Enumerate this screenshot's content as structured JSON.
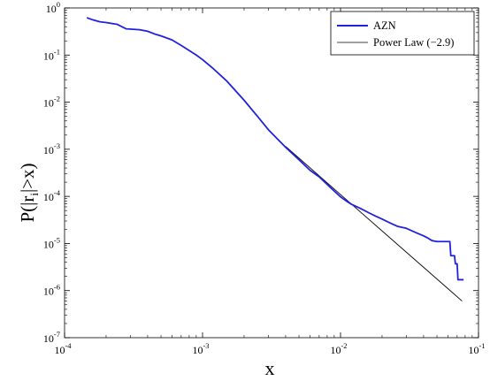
{
  "chart_data": {
    "type": "line",
    "xscale": "log",
    "yscale": "log",
    "xlim": [
      0.0001,
      0.1
    ],
    "ylim": [
      1e-07,
      1
    ],
    "grid": false,
    "legend_position": "top-right",
    "xlabel": "x",
    "ylabel_main": "P(|r",
    "ylabel_sub": "i",
    "ylabel_end": "|>x)",
    "x_ticks": [
      {
        "base": "10",
        "exp": "-4",
        "value": 0.0001
      },
      {
        "base": "10",
        "exp": "-3",
        "value": 0.001
      },
      {
        "base": "10",
        "exp": "-2",
        "value": 0.01
      },
      {
        "base": "10",
        "exp": "-1",
        "value": 0.1
      }
    ],
    "y_ticks": [
      {
        "base": "10",
        "exp": "-7",
        "value": 1e-07
      },
      {
        "base": "10",
        "exp": "-6",
        "value": 1e-06
      },
      {
        "base": "10",
        "exp": "-5",
        "value": 1e-05
      },
      {
        "base": "10",
        "exp": "-4",
        "value": 0.0001
      },
      {
        "base": "10",
        "exp": "-3",
        "value": 0.001
      },
      {
        "base": "10",
        "exp": "-2",
        "value": 0.01
      },
      {
        "base": "10",
        "exp": "-1",
        "value": 0.1
      },
      {
        "base": "10",
        "exp": "0",
        "value": 1
      }
    ],
    "series": [
      {
        "name": "AZN",
        "color": "#2222dd",
        "points": [
          [
            0.000145,
            0.62
          ],
          [
            0.00016,
            0.56
          ],
          [
            0.00018,
            0.51
          ],
          [
            0.0002,
            0.49
          ],
          [
            0.00024,
            0.45
          ],
          [
            0.00028,
            0.36
          ],
          [
            0.00035,
            0.345
          ],
          [
            0.0004,
            0.32
          ],
          [
            0.00045,
            0.28
          ],
          [
            0.0005,
            0.255
          ],
          [
            0.0006,
            0.21
          ],
          [
            0.0007,
            0.16
          ],
          [
            0.0008,
            0.125
          ],
          [
            0.0009,
            0.1
          ],
          [
            0.001,
            0.08
          ],
          [
            0.0012,
            0.051
          ],
          [
            0.0015,
            0.028
          ],
          [
            0.002,
            0.011
          ],
          [
            0.0025,
            0.005
          ],
          [
            0.003,
            0.0026
          ],
          [
            0.004,
            0.0011
          ],
          [
            0.005,
            0.0006
          ],
          [
            0.006,
            0.00036
          ],
          [
            0.007,
            0.00026
          ],
          [
            0.008,
            0.00018
          ],
          [
            0.009,
            0.00013
          ],
          [
            0.01,
            9.8e-05
          ],
          [
            0.011,
            8e-05
          ],
          [
            0.012,
            6.8e-05
          ],
          [
            0.014,
            5.5e-05
          ],
          [
            0.016,
            4.5e-05
          ],
          [
            0.018,
            3.8e-05
          ],
          [
            0.02,
            3.3e-05
          ],
          [
            0.023,
            2.7e-05
          ],
          [
            0.026,
            2.3e-05
          ],
          [
            0.03,
            2.1e-05
          ],
          [
            0.033,
            1.85e-05
          ],
          [
            0.036,
            1.65e-05
          ],
          [
            0.04,
            1.45e-05
          ],
          [
            0.043,
            1.3e-05
          ],
          [
            0.046,
            1.15e-05
          ],
          [
            0.05,
            1.1e-05
          ],
          [
            0.062,
            1.1e-05
          ],
          [
            0.063,
            5.5e-06
          ],
          [
            0.067,
            5.5e-06
          ],
          [
            0.068,
            3.7e-06
          ],
          [
            0.07,
            3.7e-06
          ],
          [
            0.071,
            1.7e-06
          ],
          [
            0.078,
            1.7e-06
          ]
        ]
      },
      {
        "name": "Power Law (−2.9)",
        "color": "#000000",
        "points": [
          [
            0.004,
            0.00115
          ],
          [
            0.076,
            6e-07
          ]
        ]
      }
    ]
  }
}
